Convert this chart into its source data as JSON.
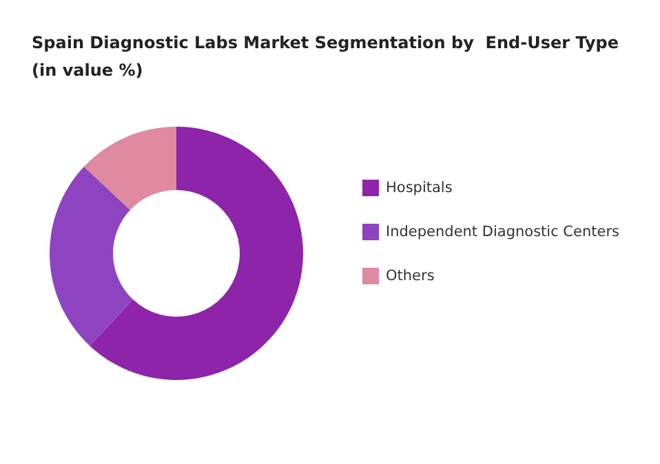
{
  "chart_data": {
    "type": "donut",
    "title": "Spain Diagnostic Labs Market Segmentation by  End-User Type (in value %)",
    "categories": [
      "Hospitals",
      "Independent Diagnostic Centers",
      "Others"
    ],
    "values": [
      62,
      25,
      13
    ],
    "colors": [
      "#8e24aa",
      "#8e44c0",
      "#df8aa0"
    ],
    "legend": "right"
  }
}
